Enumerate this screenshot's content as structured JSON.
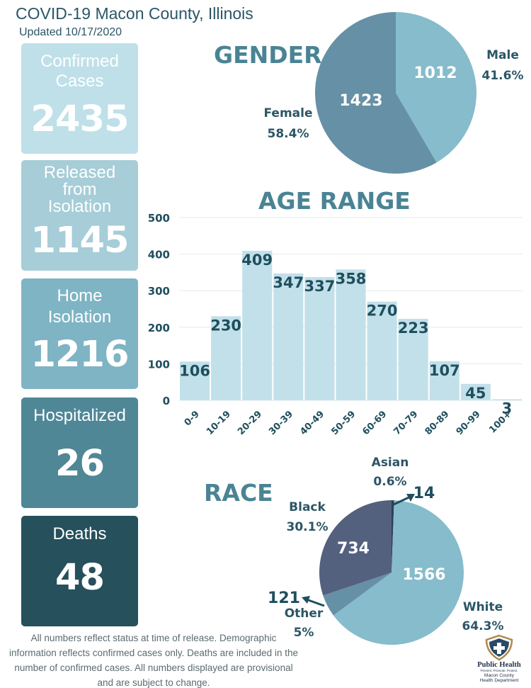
{
  "header": {
    "title": "COVID-19 Macon County, Illinois",
    "updated": "Updated 10/17/2020"
  },
  "cards": [
    {
      "label": "Confirmed\nCases",
      "value": "2435",
      "color": "#bfe0e9"
    },
    {
      "label": "Released\nfrom\nIsolation",
      "value": "1145",
      "color": "#a6cdd8"
    },
    {
      "label": "Home\nIsolation",
      "value": "1216",
      "color": "#7eb4c4"
    },
    {
      "label": "Hospitalized",
      "value": "26",
      "color": "#4f8797"
    },
    {
      "label": "Deaths",
      "value": "48",
      "color": "#25505c"
    }
  ],
  "footnote": "All numbers reflect status at time of release. Demographic information reflects confirmed cases only. Deaths are included in the number of confirmed cases. All numbers displayed are provisional and are subject to change.",
  "logo": {
    "name": "Public Health",
    "tagline": "Prevent. Promote. Protect.",
    "org": "Macon County Health Department"
  },
  "chart_data": [
    {
      "type": "pie",
      "title": "GENDER",
      "slices": [
        {
          "label": "Male",
          "value": 1012,
          "percent": "41.6%",
          "color": "#86bccb"
        },
        {
          "label": "Female",
          "value": 1423,
          "percent": "58.4%",
          "color": "#6690a5"
        }
      ]
    },
    {
      "type": "bar",
      "title": "AGE RANGE",
      "categories": [
        "0-9",
        "10-19",
        "20-29",
        "30-39",
        "40-49",
        "50-59",
        "60-69",
        "70-79",
        "80-89",
        "90-99",
        "100+"
      ],
      "values": [
        106,
        230,
        409,
        347,
        337,
        358,
        270,
        223,
        107,
        45,
        3
      ],
      "ylim": [
        0,
        500
      ],
      "yticks": [
        0,
        100,
        200,
        300,
        400,
        500
      ],
      "grid": true,
      "bar_color": "#c2e0ea"
    },
    {
      "type": "pie",
      "title": "RACE",
      "slices": [
        {
          "label": "Asian",
          "value": 14,
          "percent": "0.6%",
          "color": "#2f3f5a"
        },
        {
          "label": "White",
          "value": 1566,
          "percent": "64.3%",
          "color": "#86bccb"
        },
        {
          "label": "Other",
          "value": 121,
          "percent": "5%",
          "color": "#6690a5"
        },
        {
          "label": "Black",
          "value": 734,
          "percent": "30.1%",
          "color": "#53617e"
        }
      ]
    }
  ]
}
